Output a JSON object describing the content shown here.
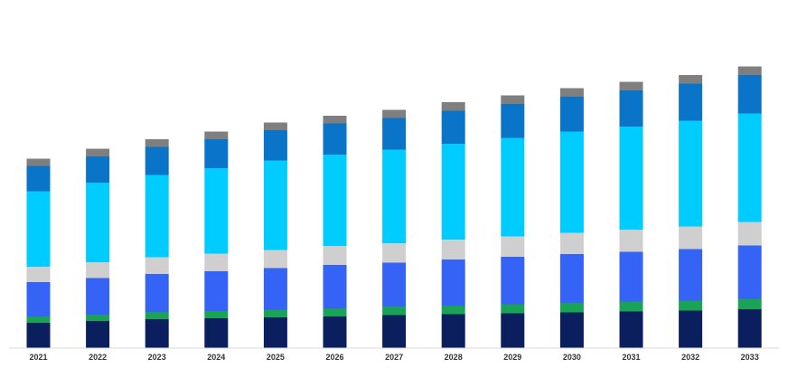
{
  "chart_data": {
    "type": "bar",
    "stacked": true,
    "title": "",
    "xlabel": "",
    "ylabel": "",
    "grid": false,
    "legend": "none",
    "categories": [
      "2021",
      "2022",
      "2023",
      "2024",
      "2025",
      "2026",
      "2027",
      "2028",
      "2029",
      "2030",
      "2031",
      "2032",
      "2033"
    ],
    "ylim": [
      0,
      315
    ],
    "series": [
      {
        "color": "#0b1f5e",
        "values": [
          28.0,
          30.0,
          32.0,
          33.0,
          34.0,
          35.0,
          36.5,
          37.5,
          38.5,
          39.5,
          40.5,
          41.5,
          43.0
        ]
      },
      {
        "color": "#1aa257",
        "values": [
          7.0,
          7.0,
          8.0,
          8.0,
          8.5,
          9.0,
          9.5,
          9.5,
          10.0,
          10.5,
          11.0,
          11.0,
          11.5
        ]
      },
      {
        "color": "#3563f5",
        "values": [
          38.0,
          40.5,
          42.0,
          44.0,
          46.0,
          48.0,
          48.5,
          51.0,
          52.5,
          54.0,
          55.0,
          57.0,
          59.0
        ]
      },
      {
        "color": "#cfcfcf",
        "values": [
          17.0,
          17.5,
          18.5,
          19.5,
          20.0,
          21.0,
          21.5,
          22.0,
          22.5,
          23.5,
          24.5,
          25.0,
          26.0
        ]
      },
      {
        "color": "#00ccff",
        "values": [
          83.5,
          88.0,
          91.0,
          94.5,
          99.0,
          101.0,
          103.5,
          106.0,
          109.0,
          112.0,
          114.0,
          117.0,
          120.0
        ]
      },
      {
        "color": "#0a74c9",
        "values": [
          28.0,
          29.0,
          31.0,
          32.0,
          33.5,
          34.5,
          35.0,
          36.5,
          37.5,
          38.5,
          40.0,
          41.0,
          42.5
        ]
      },
      {
        "color": "#7f7f7f",
        "values": [
          8.0,
          8.5,
          8.5,
          8.5,
          8.5,
          8.5,
          9.0,
          9.5,
          9.5,
          9.5,
          9.5,
          9.5,
          9.5
        ]
      }
    ]
  }
}
